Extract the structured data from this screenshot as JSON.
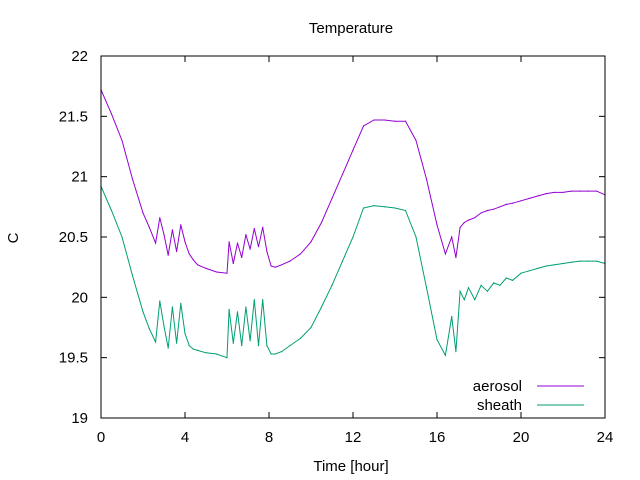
{
  "chart_data": {
    "type": "line",
    "title": "Temperature",
    "xlabel": "Time [hour]",
    "ylabel": "C",
    "xlim": [
      0,
      24
    ],
    "ylim": [
      19,
      22
    ],
    "xticks": [
      0,
      4,
      8,
      12,
      16,
      20,
      24
    ],
    "yticks": [
      19,
      19.5,
      20,
      20.5,
      21,
      21.5,
      22
    ],
    "xtick_labels": [
      "0",
      "4",
      "8",
      "12",
      "16",
      "20",
      "24"
    ],
    "ytick_labels": [
      "19",
      "19.5",
      "20",
      "20.5",
      "21",
      "21.5",
      "22"
    ],
    "grid": false,
    "legend_position": "bottom-right",
    "series": [
      {
        "name": "aerosol",
        "color": "#9400d3",
        "x": [
          0,
          0.5,
          1,
          1.5,
          2,
          2.3,
          2.6,
          2.8,
          3.0,
          3.2,
          3.4,
          3.6,
          3.8,
          4.0,
          4.2,
          4.4,
          4.6,
          5.0,
          5.5,
          6.0,
          6.1,
          6.3,
          6.5,
          6.7,
          6.9,
          7.1,
          7.3,
          7.5,
          7.7,
          7.9,
          8.1,
          8.3,
          8.6,
          9.0,
          9.5,
          10.0,
          10.5,
          11.0,
          11.5,
          12.0,
          12.5,
          13.0,
          13.5,
          14.0,
          14.5,
          15.0,
          15.5,
          16.0,
          16.4,
          16.7,
          16.9,
          17.1,
          17.3,
          17.5,
          17.8,
          18.1,
          18.4,
          18.7,
          19.0,
          19.3,
          19.6,
          20.0,
          20.4,
          20.8,
          21.2,
          21.6,
          22.0,
          22.4,
          22.8,
          23.2,
          23.6,
          24.0
        ],
        "y": [
          21.72,
          21.52,
          21.3,
          20.98,
          20.7,
          20.58,
          20.45,
          20.66,
          20.52,
          20.35,
          20.56,
          20.38,
          20.6,
          20.46,
          20.36,
          20.31,
          20.27,
          20.24,
          20.21,
          20.2,
          20.46,
          20.28,
          20.45,
          20.33,
          20.52,
          20.4,
          20.57,
          20.42,
          20.58,
          20.38,
          20.26,
          20.25,
          20.27,
          20.3,
          20.36,
          20.46,
          20.62,
          20.82,
          21.02,
          21.22,
          21.42,
          21.47,
          21.47,
          21.46,
          21.46,
          21.3,
          20.98,
          20.6,
          20.36,
          20.5,
          20.33,
          20.58,
          20.62,
          20.64,
          20.66,
          20.7,
          20.72,
          20.73,
          20.75,
          20.77,
          20.78,
          20.8,
          20.82,
          20.84,
          20.86,
          20.87,
          20.87,
          20.88,
          20.88,
          20.88,
          20.88,
          20.85
        ]
      },
      {
        "name": "sheath",
        "color": "#009e73",
        "x": [
          0,
          0.5,
          1,
          1.5,
          2,
          2.3,
          2.6,
          2.8,
          3.0,
          3.2,
          3.4,
          3.6,
          3.8,
          4.0,
          4.2,
          4.4,
          4.6,
          5.0,
          5.5,
          6.0,
          6.1,
          6.3,
          6.5,
          6.7,
          6.9,
          7.1,
          7.3,
          7.5,
          7.7,
          7.9,
          8.1,
          8.3,
          8.6,
          9.0,
          9.5,
          10.0,
          10.5,
          11.0,
          11.5,
          12.0,
          12.5,
          13.0,
          13.5,
          14.0,
          14.5,
          15.0,
          15.5,
          16.0,
          16.4,
          16.7,
          16.9,
          17.1,
          17.3,
          17.5,
          17.8,
          18.1,
          18.4,
          18.7,
          19.0,
          19.3,
          19.6,
          20.0,
          20.4,
          20.8,
          21.2,
          21.6,
          22.0,
          22.4,
          22.8,
          23.2,
          23.6,
          24.0
        ],
        "y": [
          20.92,
          20.72,
          20.5,
          20.18,
          19.88,
          19.74,
          19.63,
          19.97,
          19.76,
          19.58,
          19.92,
          19.62,
          19.95,
          19.7,
          19.6,
          19.57,
          19.56,
          19.54,
          19.53,
          19.5,
          19.9,
          19.62,
          19.88,
          19.6,
          19.92,
          19.64,
          19.98,
          19.6,
          19.98,
          19.6,
          19.53,
          19.53,
          19.55,
          19.6,
          19.66,
          19.75,
          19.92,
          20.1,
          20.3,
          20.5,
          20.74,
          20.76,
          20.75,
          20.74,
          20.72,
          20.5,
          20.08,
          19.65,
          19.52,
          19.84,
          19.55,
          20.05,
          19.98,
          20.08,
          19.98,
          20.1,
          20.05,
          20.12,
          20.1,
          20.16,
          20.14,
          20.2,
          20.22,
          20.24,
          20.26,
          20.27,
          20.28,
          20.29,
          20.3,
          20.3,
          20.3,
          20.28
        ]
      }
    ]
  }
}
